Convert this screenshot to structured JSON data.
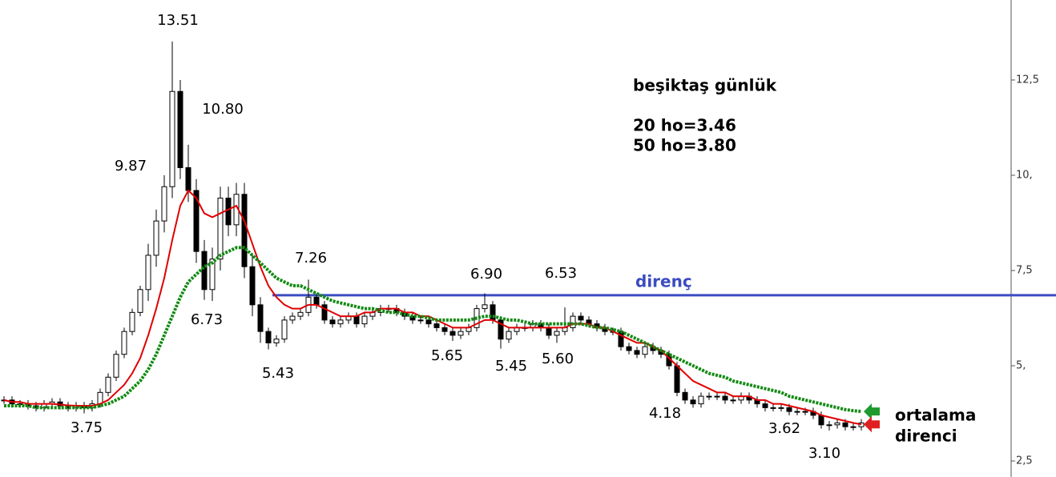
{
  "chart_data": {
    "type": "candlestick",
    "title": "beşiktaş günlük",
    "ylim": [
      2.08,
      14.6
    ],
    "yticks": [
      {
        "value": 12.5,
        "label": "12,5"
      },
      {
        "value": 10,
        "label": "10,"
      },
      {
        "value": 7.5,
        "label": "7,5"
      },
      {
        "value": 5,
        "label": "5,"
      },
      {
        "value": 2.5,
        "label": "2,5"
      }
    ],
    "open": [
      4.1,
      4.1,
      4.0,
      4.0,
      3.95,
      3.9,
      4.0,
      4.05,
      3.95,
      3.9,
      3.95,
      3.9,
      4.0,
      4.3,
      4.7,
      5.3,
      5.9,
      6.4,
      7.0,
      7.9,
      8.8,
      9.7,
      12.2,
      10.2,
      9.6,
      8.0,
      7.0,
      7.8,
      9.4,
      8.7,
      9.5,
      7.6,
      6.6,
      5.9,
      5.6,
      5.7,
      6.2,
      6.3,
      6.4,
      6.8,
      6.6,
      6.2,
      6.1,
      6.2,
      6.3,
      6.1,
      6.3,
      6.4,
      6.5,
      6.5,
      6.4,
      6.3,
      6.2,
      6.2,
      6.1,
      6.0,
      5.9,
      5.8,
      5.9,
      6.0,
      6.5,
      6.6,
      6.2,
      5.7,
      5.9,
      6.0,
      6.0,
      6.1,
      6.0,
      5.8,
      5.9,
      6.0,
      6.3,
      6.2,
      6.1,
      6.0,
      5.9,
      5.9,
      5.5,
      5.4,
      5.3,
      5.5,
      5.4,
      5.3,
      5.0,
      4.3,
      4.1,
      4.0,
      4.2,
      4.2,
      4.2,
      4.1,
      4.1,
      4.2,
      4.1,
      4.0,
      3.9,
      3.9,
      3.9,
      3.8,
      3.8,
      3.8,
      3.7,
      3.45,
      3.45,
      3.5,
      3.4,
      3.4
    ],
    "high": [
      4.2,
      4.2,
      4.1,
      4.1,
      4.05,
      4.1,
      4.15,
      4.15,
      4.05,
      4.05,
      4.05,
      4.1,
      4.4,
      4.8,
      5.4,
      6.0,
      6.5,
      7.1,
      8.2,
      9.1,
      10.0,
      13.51,
      12.5,
      10.8,
      9.9,
      8.3,
      8.1,
      9.7,
      9.7,
      9.8,
      9.8,
      7.9,
      6.8,
      6.0,
      5.8,
      6.3,
      6.4,
      6.5,
      7.26,
      6.9,
      6.7,
      6.3,
      6.3,
      6.4,
      6.4,
      6.4,
      6.5,
      6.6,
      6.6,
      6.6,
      6.5,
      6.4,
      6.3,
      6.3,
      6.2,
      6.1,
      6.0,
      6.0,
      6.1,
      6.6,
      6.9,
      6.7,
      6.3,
      6.0,
      6.1,
      6.1,
      6.2,
      6.2,
      6.1,
      6.0,
      6.53,
      6.4,
      6.4,
      6.3,
      6.2,
      6.1,
      6.0,
      6.0,
      5.6,
      5.5,
      5.6,
      5.6,
      5.5,
      5.4,
      5.1,
      4.4,
      4.2,
      4.3,
      4.3,
      4.3,
      4.3,
      4.2,
      4.3,
      4.3,
      4.2,
      4.1,
      4.0,
      4.0,
      4.0,
      3.9,
      3.9,
      3.9,
      3.8,
      3.55,
      3.6,
      3.6,
      3.5,
      3.6
    ],
    "low": [
      4.0,
      3.9,
      3.9,
      3.85,
      3.8,
      3.8,
      3.9,
      3.85,
      3.8,
      3.8,
      3.75,
      3.8,
      3.9,
      4.2,
      4.6,
      5.2,
      5.8,
      6.3,
      6.7,
      7.6,
      8.5,
      9.4,
      9.9,
      9.3,
      7.7,
      6.73,
      6.7,
      7.5,
      8.4,
      8.4,
      7.3,
      6.3,
      5.6,
      5.43,
      5.5,
      5.6,
      6.1,
      6.2,
      6.3,
      6.5,
      6.1,
      6.0,
      6.0,
      6.1,
      6.0,
      6.0,
      6.2,
      6.3,
      6.4,
      6.3,
      6.2,
      6.1,
      6.1,
      6.0,
      5.9,
      5.8,
      5.65,
      5.7,
      5.8,
      5.9,
      6.4,
      6.1,
      5.45,
      5.6,
      5.8,
      5.9,
      5.9,
      5.9,
      5.7,
      5.6,
      5.8,
      5.9,
      6.1,
      6.0,
      5.9,
      5.8,
      5.8,
      5.4,
      5.3,
      5.2,
      5.2,
      5.3,
      5.2,
      4.9,
      4.2,
      4.0,
      3.9,
      3.9,
      4.1,
      4.1,
      4.0,
      4.0,
      4.0,
      4.0,
      3.9,
      3.8,
      3.8,
      3.8,
      3.7,
      3.7,
      3.7,
      3.6,
      3.35,
      3.3,
      3.35,
      3.3,
      3.3,
      3.3
    ],
    "close": [
      4.1,
      4.0,
      4.0,
      3.95,
      3.9,
      4.0,
      4.05,
      3.95,
      3.9,
      3.95,
      3.9,
      4.0,
      4.3,
      4.7,
      5.3,
      5.9,
      6.4,
      7.0,
      7.9,
      8.8,
      9.7,
      12.2,
      10.2,
      9.6,
      8.0,
      7.0,
      7.8,
      9.4,
      8.7,
      9.5,
      7.6,
      6.6,
      5.9,
      5.6,
      5.7,
      6.2,
      6.3,
      6.4,
      6.8,
      6.6,
      6.2,
      6.1,
      6.2,
      6.3,
      6.1,
      6.3,
      6.4,
      6.5,
      6.5,
      6.4,
      6.3,
      6.2,
      6.2,
      6.1,
      6.0,
      5.9,
      5.8,
      5.9,
      6.0,
      6.5,
      6.6,
      6.2,
      5.7,
      5.9,
      6.0,
      6.0,
      6.1,
      6.0,
      5.8,
      5.9,
      6.0,
      6.3,
      6.2,
      6.1,
      6.0,
      5.9,
      5.9,
      5.5,
      5.4,
      5.3,
      5.5,
      5.4,
      5.3,
      5.0,
      4.3,
      4.1,
      4.0,
      4.2,
      4.2,
      4.2,
      4.1,
      4.1,
      4.2,
      4.1,
      4.0,
      3.9,
      3.9,
      3.9,
      3.8,
      3.8,
      3.8,
      3.7,
      3.45,
      3.45,
      3.5,
      3.4,
      3.4,
      3.5
    ],
    "series": [
      {
        "name": "20 ho=3.46",
        "color": "#e00000",
        "values": [
          4.1,
          4.05,
          4.05,
          4.0,
          4.0,
          4.0,
          4.0,
          3.98,
          3.96,
          3.95,
          3.95,
          3.95,
          4.0,
          4.1,
          4.3,
          4.5,
          4.8,
          5.2,
          5.8,
          6.5,
          7.3,
          8.3,
          9.2,
          9.6,
          9.4,
          9.0,
          8.9,
          9.0,
          9.1,
          9.2,
          8.8,
          8.2,
          7.6,
          7.1,
          6.8,
          6.6,
          6.5,
          6.5,
          6.6,
          6.6,
          6.5,
          6.4,
          6.3,
          6.3,
          6.3,
          6.4,
          6.4,
          6.5,
          6.5,
          6.5,
          6.4,
          6.4,
          6.3,
          6.3,
          6.2,
          6.1,
          6.0,
          6.0,
          6.0,
          6.1,
          6.2,
          6.2,
          6.1,
          6.0,
          6.0,
          6.0,
          6.0,
          6.0,
          6.0,
          6.0,
          6.0,
          6.1,
          6.1,
          6.1,
          6.0,
          6.0,
          5.9,
          5.8,
          5.7,
          5.6,
          5.6,
          5.5,
          5.4,
          5.2,
          5.0,
          4.8,
          4.6,
          4.5,
          4.4,
          4.3,
          4.3,
          4.2,
          4.2,
          4.2,
          4.1,
          4.1,
          4.0,
          4.0,
          3.95,
          3.9,
          3.85,
          3.8,
          3.7,
          3.65,
          3.6,
          3.55,
          3.5,
          3.46
        ]
      },
      {
        "name": "50 ho=3.80",
        "color": "#128a12",
        "values": [
          3.95,
          3.95,
          3.95,
          3.95,
          3.9,
          3.9,
          3.9,
          3.9,
          3.9,
          3.9,
          3.9,
          3.9,
          3.95,
          4.0,
          4.1,
          4.2,
          4.4,
          4.6,
          4.9,
          5.3,
          5.8,
          6.3,
          6.8,
          7.2,
          7.4,
          7.6,
          7.7,
          7.9,
          8.0,
          8.1,
          8.1,
          7.9,
          7.7,
          7.5,
          7.3,
          7.2,
          7.1,
          7.1,
          7.0,
          6.9,
          6.8,
          6.7,
          6.65,
          6.6,
          6.55,
          6.5,
          6.5,
          6.45,
          6.4,
          6.4,
          6.35,
          6.3,
          6.3,
          6.25,
          6.2,
          6.2,
          6.2,
          6.2,
          6.2,
          6.25,
          6.3,
          6.3,
          6.25,
          6.2,
          6.2,
          6.15,
          6.1,
          6.1,
          6.1,
          6.1,
          6.1,
          6.1,
          6.1,
          6.05,
          6.0,
          6.0,
          5.95,
          5.9,
          5.8,
          5.7,
          5.6,
          5.5,
          5.4,
          5.3,
          5.2,
          5.1,
          5.0,
          4.9,
          4.8,
          4.75,
          4.7,
          4.6,
          4.55,
          4.5,
          4.45,
          4.4,
          4.35,
          4.3,
          4.2,
          4.15,
          4.1,
          4.05,
          4.0,
          3.95,
          3.9,
          3.85,
          3.82,
          3.8
        ]
      }
    ],
    "resistance": {
      "value": 6.85,
      "label": "direnç",
      "color": "#3b4cc0"
    },
    "annotations": [
      "13.51",
      "10.80",
      "9.87",
      "6.73",
      "7.26",
      "5.43",
      "6.90",
      "6.53",
      "5.65",
      "5.45",
      "5.60",
      "4.18",
      "3.62",
      "3.10",
      "3.75"
    ],
    "arrow_label": [
      "ortalama",
      "direnci"
    ]
  }
}
